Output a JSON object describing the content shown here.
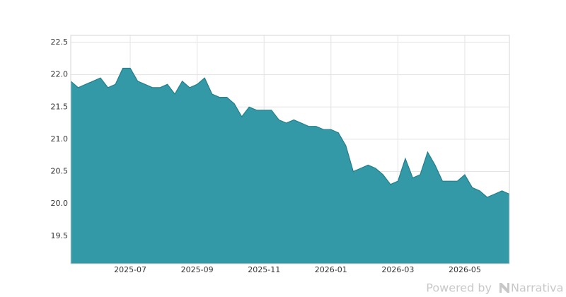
{
  "chart_data": {
    "type": "area",
    "color": "#3399a6",
    "line_color": "#237f8c",
    "grid": true,
    "categories": [
      null,
      null,
      null,
      null,
      null,
      null,
      null,
      null,
      "2025-07",
      null,
      null,
      null,
      null,
      null,
      null,
      null,
      null,
      "2025-09",
      null,
      null,
      null,
      null,
      null,
      null,
      null,
      null,
      "2025-11",
      null,
      null,
      null,
      null,
      null,
      null,
      null,
      null,
      "2026-01",
      null,
      null,
      null,
      null,
      null,
      null,
      null,
      null,
      "2026-03",
      null,
      null,
      null,
      null,
      null,
      null,
      null,
      null,
      "2026-05",
      null,
      null,
      null,
      null,
      null,
      null
    ],
    "values": [
      21.9,
      21.8,
      21.85,
      21.9,
      21.95,
      21.8,
      21.85,
      22.1,
      22.1,
      21.9,
      21.85,
      21.8,
      21.8,
      21.85,
      21.7,
      21.9,
      21.8,
      21.85,
      21.95,
      21.7,
      21.65,
      21.65,
      21.55,
      21.35,
      21.5,
      21.45,
      21.45,
      21.45,
      21.3,
      21.25,
      21.3,
      21.25,
      21.2,
      21.2,
      21.15,
      21.15,
      21.1,
      20.9,
      20.5,
      20.55,
      20.6,
      20.55,
      20.45,
      20.3,
      20.35,
      20.7,
      20.4,
      20.45,
      20.8,
      20.6,
      20.35,
      20.35,
      20.35,
      20.45,
      20.25,
      20.2,
      20.1,
      20.15,
      20.2,
      20.15
    ],
    "ylim": [
      19.07,
      22.61
    ],
    "yticks": [
      19.5,
      {
        "value": 20,
        "label": "20.0"
      },
      20.5,
      {
        "value": 21,
        "label": "21.0"
      },
      21.5,
      {
        "value": 22,
        "label": "22.0"
      },
      22.5
    ]
  },
  "footer": {
    "powered_by": "Powered by",
    "brand": "Narrativa"
  }
}
